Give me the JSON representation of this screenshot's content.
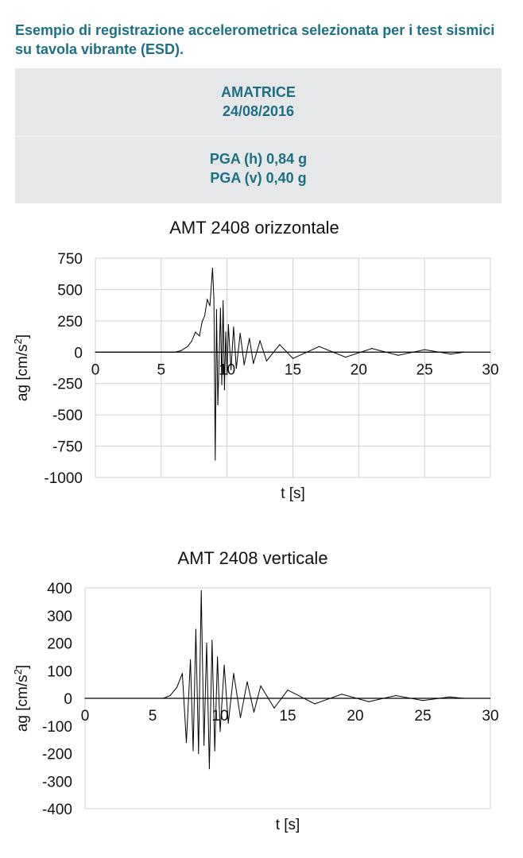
{
  "heading": "Esempio di registrazione accelerometrica selezionata per i test sismici su tavola vibrante (ESD).",
  "info": {
    "station": "AMATRICE",
    "date": "24/08/2016",
    "pga_h": "PGA (h) 0,84 g",
    "pga_v": "PGA (v) 0,40 g"
  },
  "colors": {
    "heading": "#1d6f86",
    "box_bg": "#e6e7e8",
    "trace": "#000000",
    "grid": "#d0d0d0"
  },
  "chart_data": [
    {
      "type": "line",
      "title": "AMT 2408 orizzontale",
      "xlabel": "t [s]",
      "ylabel": "ag [cm/s²]",
      "ylabel_base": "ag [cm/s",
      "ylabel_sup": "2",
      "ylabel_end": "]",
      "xlim": [
        0,
        30
      ],
      "ylim": [
        -1000,
        750
      ],
      "xticks": [
        0,
        5,
        10,
        15,
        20,
        25,
        30
      ],
      "yticks": [
        750,
        500,
        250,
        0,
        -250,
        -500,
        -750,
        -1000
      ],
      "grid": true,
      "series": [
        {
          "x": [
            0,
            6.0,
            6.5,
            7.0,
            7.3,
            7.6,
            7.9,
            8.1,
            8.3,
            8.5,
            8.7,
            8.9,
            9.0,
            9.1,
            9.2,
            9.3,
            9.5,
            9.6,
            9.7,
            9.8,
            9.9,
            10.0,
            10.1,
            10.3,
            10.5,
            10.7,
            11.0,
            11.3,
            11.7,
            12.0,
            12.5,
            13.0,
            14.0,
            15.0,
            17.0,
            19.0,
            21.0,
            23.0,
            25.0,
            27.0,
            28.0
          ],
          "y": [
            0,
            0,
            12,
            45,
            85,
            160,
            130,
            240,
            290,
            420,
            370,
            670,
            430,
            -860,
            340,
            -420,
            350,
            -260,
            410,
            -300,
            160,
            -180,
            220,
            -140,
            200,
            -130,
            150,
            -100,
            110,
            -90,
            90,
            -70,
            60,
            -50,
            45,
            -40,
            30,
            -25,
            20,
            -15,
            0
          ]
        }
      ]
    },
    {
      "type": "line",
      "title": "AMT 2408 verticale",
      "xlabel": "t [s]",
      "ylabel": "ag [cm/s²]",
      "ylabel_base": "ag [cm/s",
      "ylabel_sup": "2",
      "ylabel_end": "]",
      "xlim": [
        0,
        30
      ],
      "ylim": [
        -400,
        400
      ],
      "xticks": [
        0,
        5,
        10,
        15,
        20,
        25,
        30
      ],
      "yticks": [
        400,
        300,
        200,
        100,
        0,
        -100,
        -200,
        -300,
        -400
      ],
      "grid": false,
      "series": [
        {
          "x": [
            0,
            5.8,
            6.3,
            6.8,
            7.2,
            7.5,
            7.8,
            8.0,
            8.2,
            8.4,
            8.6,
            8.8,
            9.0,
            9.2,
            9.4,
            9.6,
            9.8,
            10.0,
            10.3,
            10.6,
            11.0,
            11.5,
            12.0,
            12.5,
            13.0,
            14.0,
            15.0,
            17.0,
            19.0,
            21.0,
            23.0,
            25.0,
            27.0,
            28.0
          ],
          "y": [
            0,
            0,
            10,
            40,
            90,
            -160,
            140,
            -190,
            250,
            -200,
            390,
            -170,
            200,
            -255,
            210,
            -190,
            150,
            -120,
            120,
            -90,
            90,
            -70,
            60,
            -50,
            45,
            -35,
            30,
            -20,
            15,
            -12,
            10,
            -8,
            5,
            0
          ]
        }
      ]
    }
  ]
}
